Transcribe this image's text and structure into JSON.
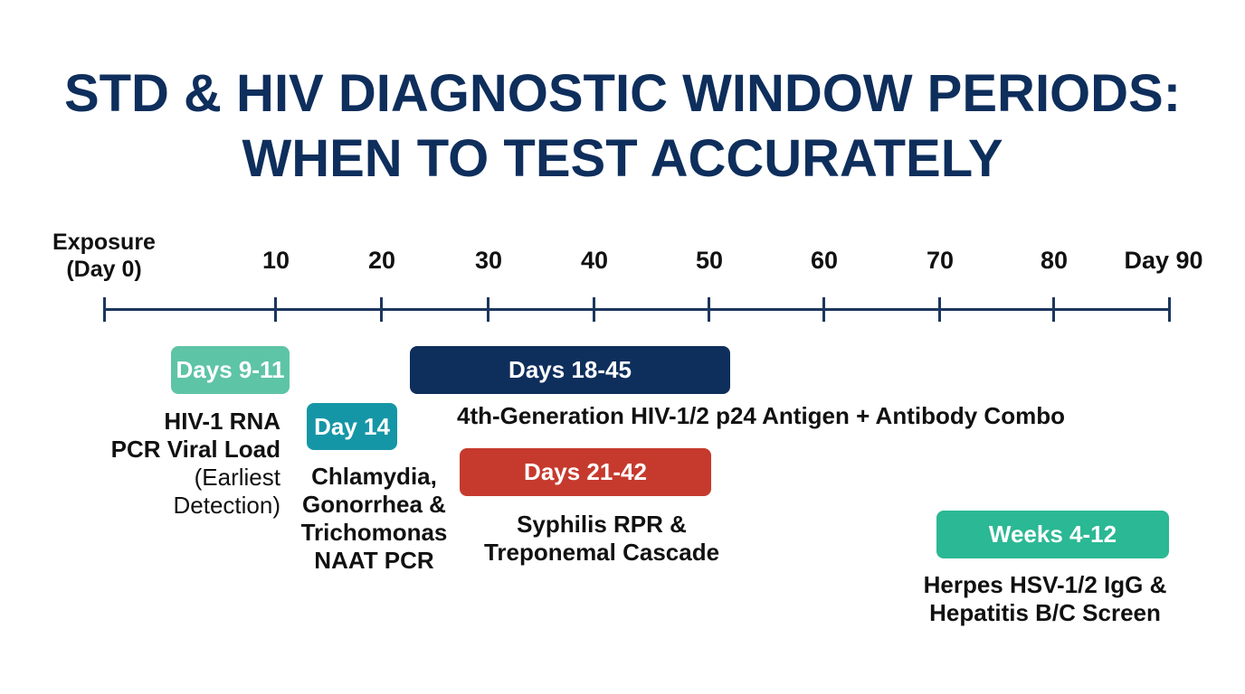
{
  "title": {
    "line1": "STD & HIV DIAGNOSTIC WINDOW PERIODS:",
    "line2": "WHEN TO TEST ACCURATELY"
  },
  "timeline": {
    "start_label_line1": "Exposure",
    "start_label_line2": "(Day 0)",
    "ticks": [
      "10",
      "20",
      "30",
      "40",
      "50",
      "60",
      "70",
      "80",
      "Day 90"
    ]
  },
  "tests": {
    "hiv_rna": {
      "badge": "Days 9-11",
      "color": "#5ec4a6",
      "line1": "HIV-1 RNA",
      "line2": "PCR Viral Load",
      "line3": "(Earliest",
      "line4": "Detection)"
    },
    "chlamydia": {
      "badge": "Day 14",
      "color": "#1596a6",
      "line1": "Chlamydia,",
      "line2": "Gonorrhea &",
      "line3": "Trichomonas",
      "line4": "NAAT PCR"
    },
    "hiv_combo": {
      "badge": "Days 18-45",
      "color": "#0e2e5c",
      "line1": "4th-Generation HIV-1/2 p24 Antigen + Antibody Combo"
    },
    "syphilis": {
      "badge": "Days 21-42",
      "color": "#c63a2e",
      "line1": "Syphilis RPR &",
      "line2": "Treponemal Cascade"
    },
    "herpes": {
      "badge": "Weeks 4-12",
      "color": "#2bb894",
      "line1": "Herpes HSV-1/2 IgG &",
      "line2": "Hepatitis B/C Screen"
    }
  }
}
